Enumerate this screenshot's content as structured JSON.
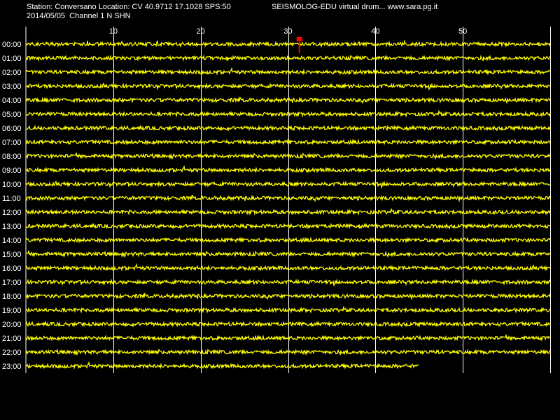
{
  "header": {
    "station_line": "Station: Conversano Location: CV 40.9712 17.1028 SPS:50",
    "date_channel_line": "2014/05/05  Channel 1 N SHN",
    "credit_line": "SEISMOLOG-EDU virtual drum... www.sara.pg.it"
  },
  "colors": {
    "background": "#000000",
    "trace": "#ffff00",
    "grid": "#ffffff",
    "marker": "#ff0000",
    "text": "#ffffff"
  },
  "chart_data": {
    "type": "line",
    "title": "",
    "xlabel": "",
    "ylabel": "",
    "x_unit": "minutes",
    "xlim": [
      0,
      60
    ],
    "x_ticks": [
      10,
      20,
      30,
      40,
      50
    ],
    "gridlines_x": [
      10,
      20,
      30,
      40,
      50,
      60
    ],
    "grid": true,
    "rows": [
      {
        "label": "00:00",
        "data_end_min": 60
      },
      {
        "label": "01:00",
        "data_end_min": 60
      },
      {
        "label": "02:00",
        "data_end_min": 60
      },
      {
        "label": "03:00",
        "data_end_min": 60
      },
      {
        "label": "04:00",
        "data_end_min": 60
      },
      {
        "label": "05:00",
        "data_end_min": 60
      },
      {
        "label": "06:00",
        "data_end_min": 60
      },
      {
        "label": "07:00",
        "data_end_min": 60
      },
      {
        "label": "08:00",
        "data_end_min": 60
      },
      {
        "label": "09:00",
        "data_end_min": 60
      },
      {
        "label": "10:00",
        "data_end_min": 60
      },
      {
        "label": "11:00",
        "data_end_min": 60
      },
      {
        "label": "12:00",
        "data_end_min": 60
      },
      {
        "label": "13:00",
        "data_end_min": 60
      },
      {
        "label": "14:00",
        "data_end_min": 60
      },
      {
        "label": "15:00",
        "data_end_min": 60
      },
      {
        "label": "16:00",
        "data_end_min": 60
      },
      {
        "label": "17:00",
        "data_end_min": 60
      },
      {
        "label": "18:00",
        "data_end_min": 60
      },
      {
        "label": "19:00",
        "data_end_min": 60
      },
      {
        "label": "20:00",
        "data_end_min": 60
      },
      {
        "label": "21:00",
        "data_end_min": 60
      },
      {
        "label": "22:00",
        "data_end_min": 60
      },
      {
        "label": "23:00",
        "data_end_min": 45
      }
    ],
    "marker": {
      "row": "00:00",
      "minute": 31.3
    }
  }
}
